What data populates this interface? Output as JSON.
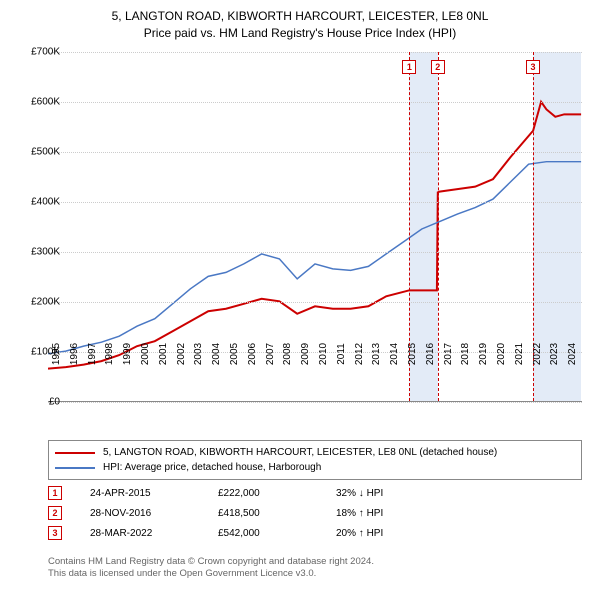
{
  "title": {
    "line1": "5, LANGTON ROAD, KIBWORTH HARCOURT, LEICESTER, LE8 0NL",
    "line2": "Price paid vs. HM Land Registry's House Price Index (HPI)"
  },
  "chart": {
    "type": "line",
    "background_color": "#ffffff",
    "grid_color": "#cccccc",
    "x_axis": {
      "min_year": 1995,
      "max_year": 2025,
      "ticks": [
        1995,
        1996,
        1997,
        1998,
        1999,
        2000,
        2001,
        2002,
        2003,
        2004,
        2005,
        2006,
        2007,
        2008,
        2009,
        2010,
        2011,
        2012,
        2013,
        2014,
        2015,
        2016,
        2017,
        2018,
        2019,
        2020,
        2021,
        2022,
        2023,
        2024
      ]
    },
    "y_axis": {
      "min": 0,
      "max": 700000,
      "tick_step": 100000,
      "labels": [
        "£0",
        "£100K",
        "£200K",
        "£300K",
        "£400K",
        "£500K",
        "£600K",
        "£700K"
      ]
    },
    "shaded_bands": [
      {
        "from_year": 2015.3,
        "to_year": 2016.9,
        "color": "#e3ebf7"
      },
      {
        "from_year": 2022.25,
        "to_year": 2024.95,
        "color": "#e3ebf7"
      }
    ],
    "markers": [
      {
        "n": "1",
        "year": 2015.3
      },
      {
        "n": "2",
        "year": 2016.9
      },
      {
        "n": "3",
        "year": 2022.25
      }
    ],
    "series": [
      {
        "name": "price_paid",
        "label": "5, LANGTON ROAD, KIBWORTH HARCOURT, LEICESTER, LE8 0NL (detached house)",
        "color": "#cc0000",
        "line_width": 2,
        "points": [
          [
            1995,
            65000
          ],
          [
            1996,
            68000
          ],
          [
            1997,
            73000
          ],
          [
            1998,
            80000
          ],
          [
            1999,
            92000
          ],
          [
            2000,
            110000
          ],
          [
            2001,
            120000
          ],
          [
            2002,
            140000
          ],
          [
            2003,
            160000
          ],
          [
            2004,
            180000
          ],
          [
            2005,
            185000
          ],
          [
            2006,
            195000
          ],
          [
            2007,
            205000
          ],
          [
            2008,
            200000
          ],
          [
            2009,
            175000
          ],
          [
            2010,
            190000
          ],
          [
            2011,
            185000
          ],
          [
            2012,
            185000
          ],
          [
            2013,
            190000
          ],
          [
            2014,
            210000
          ],
          [
            2015.3,
            222000
          ],
          [
            2016.85,
            222000
          ],
          [
            2016.9,
            418500
          ],
          [
            2017,
            420000
          ],
          [
            2018,
            425000
          ],
          [
            2019,
            430000
          ],
          [
            2020,
            445000
          ],
          [
            2021,
            490000
          ],
          [
            2022.2,
            540000
          ],
          [
            2022.25,
            542000
          ],
          [
            2022.7,
            600000
          ],
          [
            2023,
            585000
          ],
          [
            2023.5,
            570000
          ],
          [
            2024,
            575000
          ],
          [
            2024.95,
            575000
          ]
        ]
      },
      {
        "name": "hpi",
        "label": "HPI: Average price, detached house, Harborough",
        "color": "#4a78c4",
        "line_width": 1.5,
        "points": [
          [
            1995,
            95000
          ],
          [
            1996,
            100000
          ],
          [
            1997,
            110000
          ],
          [
            1998,
            118000
          ],
          [
            1999,
            130000
          ],
          [
            2000,
            150000
          ],
          [
            2001,
            165000
          ],
          [
            2002,
            195000
          ],
          [
            2003,
            225000
          ],
          [
            2004,
            250000
          ],
          [
            2005,
            258000
          ],
          [
            2006,
            275000
          ],
          [
            2007,
            295000
          ],
          [
            2008,
            285000
          ],
          [
            2009,
            245000
          ],
          [
            2010,
            275000
          ],
          [
            2011,
            265000
          ],
          [
            2012,
            262000
          ],
          [
            2013,
            270000
          ],
          [
            2014,
            295000
          ],
          [
            2015,
            320000
          ],
          [
            2016,
            345000
          ],
          [
            2017,
            360000
          ],
          [
            2018,
            375000
          ],
          [
            2019,
            388000
          ],
          [
            2020,
            405000
          ],
          [
            2021,
            440000
          ],
          [
            2022,
            475000
          ],
          [
            2023,
            480000
          ],
          [
            2024,
            480000
          ],
          [
            2024.95,
            480000
          ]
        ]
      }
    ]
  },
  "legend": [
    {
      "color": "#cc0000",
      "text": "5, LANGTON ROAD, KIBWORTH HARCOURT, LEICESTER, LE8 0NL (detached house)"
    },
    {
      "color": "#4a78c4",
      "text": "HPI: Average price, detached house, Harborough"
    }
  ],
  "events": [
    {
      "n": "1",
      "date": "24-APR-2015",
      "price": "£222,000",
      "delta": "32% ↓ HPI"
    },
    {
      "n": "2",
      "date": "28-NOV-2016",
      "price": "£418,500",
      "delta": "18% ↑ HPI"
    },
    {
      "n": "3",
      "date": "28-MAR-2022",
      "price": "£542,000",
      "delta": "20% ↑ HPI"
    }
  ],
  "footer": {
    "line1": "Contains HM Land Registry data © Crown copyright and database right 2024.",
    "line2": "This data is licensed under the Open Government Licence v3.0."
  }
}
